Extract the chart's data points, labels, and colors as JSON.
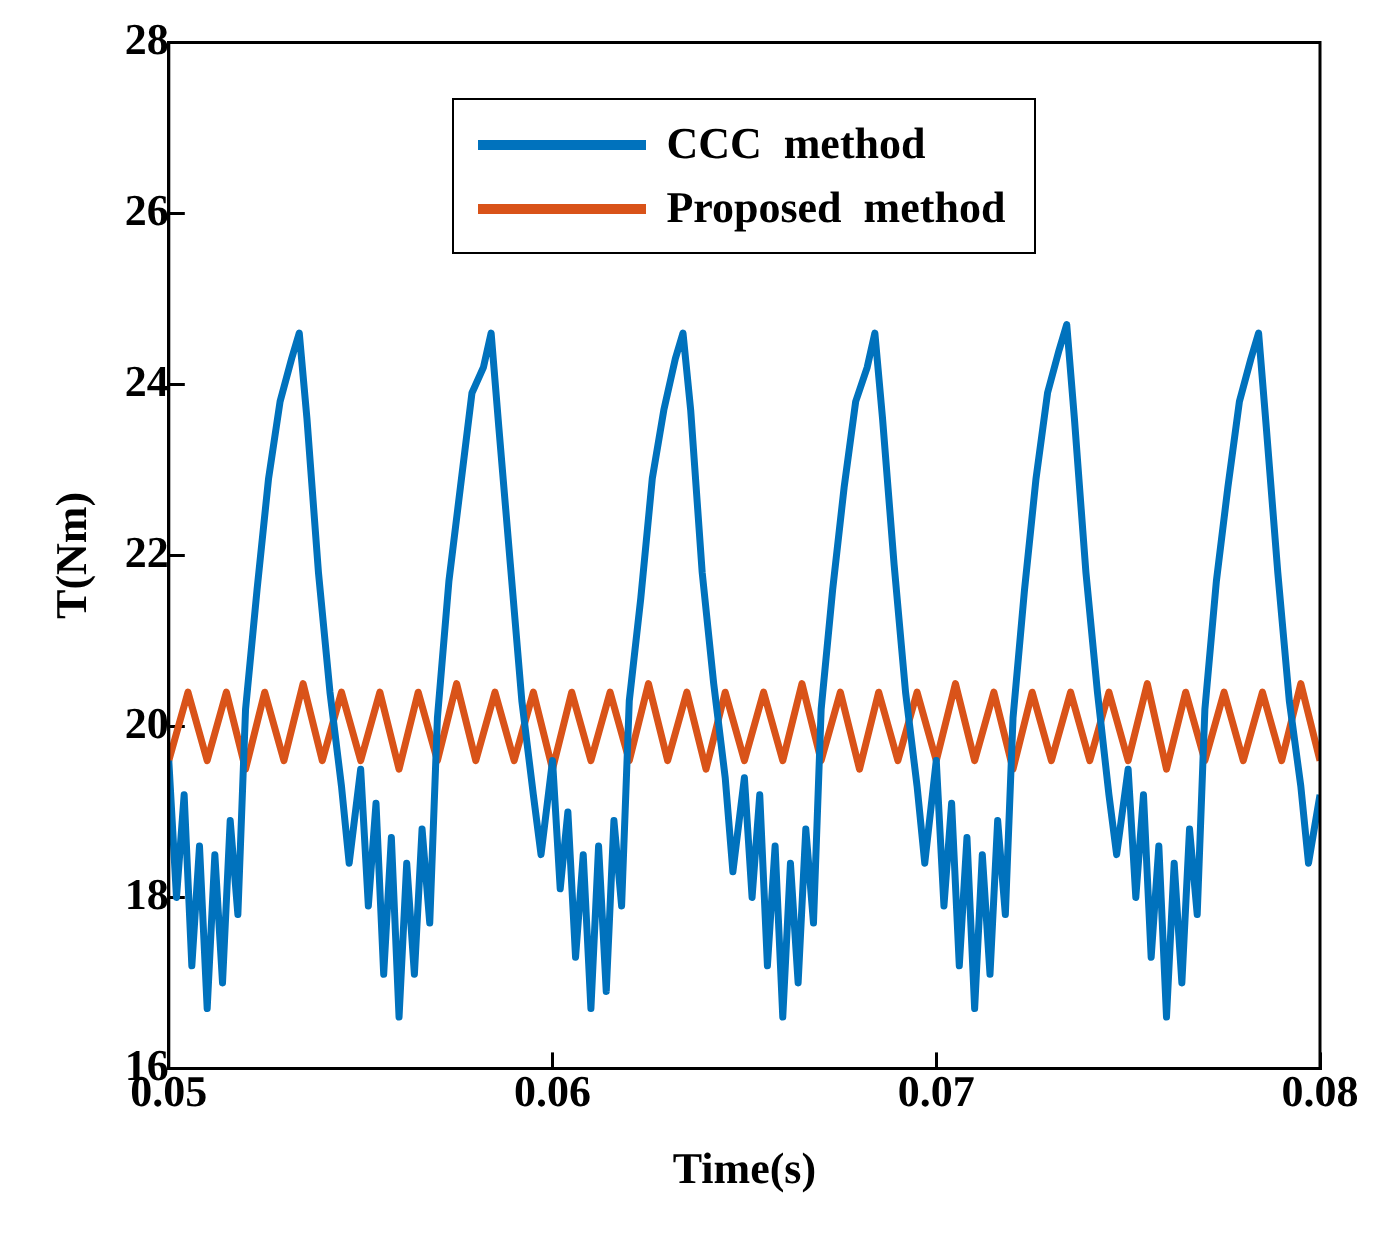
{
  "chart_data": {
    "type": "line",
    "xlabel": "Time(s)",
    "ylabel": "T(Nm)",
    "xlim": [
      0.05,
      0.08
    ],
    "xticks": [
      0.05,
      0.06,
      0.07,
      0.08
    ],
    "ylim": [
      16,
      28
    ],
    "yticks": [
      16,
      18,
      20,
      22,
      24,
      26,
      28
    ],
    "legend": "top",
    "grid": false,
    "marker": "none",
    "line_style": "solid",
    "series": [
      {
        "name": "CCC  method",
        "color": "#0072bd",
        "x": [
          0.05,
          0.0502,
          0.0504,
          0.0506,
          0.0508,
          0.051,
          0.0512,
          0.0514,
          0.0516,
          0.0518,
          0.052,
          0.0523,
          0.0526,
          0.0529,
          0.0532,
          0.0534,
          0.0536,
          0.0539,
          0.0542,
          0.0545,
          0.0547,
          0.055,
          0.0552,
          0.0554,
          0.0556,
          0.0558,
          0.056,
          0.0562,
          0.0564,
          0.0566,
          0.0568,
          0.057,
          0.0573,
          0.0576,
          0.0579,
          0.0582,
          0.0584,
          0.0586,
          0.0589,
          0.0592,
          0.0595,
          0.0597,
          0.06,
          0.0602,
          0.0604,
          0.0606,
          0.0608,
          0.061,
          0.0612,
          0.0614,
          0.0616,
          0.0618,
          0.062,
          0.0623,
          0.0626,
          0.0629,
          0.0632,
          0.0634,
          0.0636,
          0.0639,
          0.0642,
          0.0645,
          0.0647,
          0.065,
          0.0652,
          0.0654,
          0.0656,
          0.0658,
          0.066,
          0.0662,
          0.0664,
          0.0666,
          0.0668,
          0.067,
          0.0673,
          0.0676,
          0.0679,
          0.0682,
          0.0684,
          0.0686,
          0.0689,
          0.0692,
          0.0695,
          0.0697,
          0.07,
          0.0702,
          0.0704,
          0.0706,
          0.0708,
          0.071,
          0.0712,
          0.0714,
          0.0716,
          0.0718,
          0.072,
          0.0723,
          0.0726,
          0.0729,
          0.0732,
          0.0734,
          0.0736,
          0.0739,
          0.0742,
          0.0745,
          0.0747,
          0.075,
          0.0752,
          0.0754,
          0.0756,
          0.0758,
          0.076,
          0.0762,
          0.0764,
          0.0766,
          0.0768,
          0.077,
          0.0773,
          0.0776,
          0.0779,
          0.0782,
          0.0784,
          0.0786,
          0.0789,
          0.0792,
          0.0795,
          0.0797,
          0.08
        ],
        "values": [
          19.6,
          18.0,
          19.2,
          17.2,
          18.6,
          16.7,
          18.5,
          17.0,
          18.9,
          17.8,
          20.2,
          21.6,
          22.9,
          23.8,
          24.3,
          24.6,
          23.6,
          21.8,
          20.4,
          19.3,
          18.4,
          19.5,
          17.9,
          19.1,
          17.1,
          18.7,
          16.6,
          18.4,
          17.1,
          18.8,
          17.7,
          20.1,
          21.7,
          22.8,
          23.9,
          24.2,
          24.6,
          23.5,
          21.9,
          20.3,
          19.2,
          18.5,
          19.6,
          18.1,
          19.0,
          17.3,
          18.5,
          16.7,
          18.6,
          16.9,
          18.9,
          17.9,
          20.3,
          21.5,
          22.9,
          23.7,
          24.3,
          24.6,
          23.7,
          21.8,
          20.5,
          19.4,
          18.3,
          19.4,
          18.0,
          19.2,
          17.2,
          18.6,
          16.6,
          18.4,
          17.0,
          18.8,
          17.7,
          20.2,
          21.6,
          22.8,
          23.8,
          24.2,
          24.6,
          23.6,
          21.9,
          20.4,
          19.3,
          18.4,
          19.6,
          17.9,
          19.1,
          17.2,
          18.7,
          16.7,
          18.5,
          17.1,
          18.9,
          17.8,
          20.1,
          21.6,
          22.9,
          23.9,
          24.4,
          24.7,
          23.6,
          21.8,
          20.4,
          19.2,
          18.5,
          19.5,
          18.0,
          19.2,
          17.3,
          18.6,
          16.6,
          18.4,
          17.0,
          18.8,
          17.8,
          20.2,
          21.7,
          22.8,
          23.8,
          24.3,
          24.6,
          23.5,
          21.8,
          20.3,
          19.3,
          18.4,
          19.2
        ]
      },
      {
        "name": "Proposed  method",
        "color": "#d95319",
        "x": [
          0.05,
          0.0505,
          0.051,
          0.0515,
          0.052,
          0.0525,
          0.053,
          0.0535,
          0.054,
          0.0545,
          0.055,
          0.0555,
          0.056,
          0.0565,
          0.057,
          0.0575,
          0.058,
          0.0585,
          0.059,
          0.0595,
          0.06,
          0.0605,
          0.061,
          0.0615,
          0.062,
          0.0625,
          0.063,
          0.0635,
          0.064,
          0.0645,
          0.065,
          0.0655,
          0.066,
          0.0665,
          0.067,
          0.0675,
          0.068,
          0.0685,
          0.069,
          0.0695,
          0.07,
          0.0705,
          0.071,
          0.0715,
          0.072,
          0.0725,
          0.073,
          0.0735,
          0.074,
          0.0745,
          0.075,
          0.0755,
          0.076,
          0.0765,
          0.077,
          0.0775,
          0.078,
          0.0785,
          0.079,
          0.0795,
          0.08
        ],
        "values": [
          19.6,
          20.4,
          19.6,
          20.4,
          19.5,
          20.4,
          19.6,
          20.5,
          19.6,
          20.4,
          19.6,
          20.4,
          19.5,
          20.4,
          19.6,
          20.5,
          19.6,
          20.4,
          19.6,
          20.4,
          19.5,
          20.4,
          19.6,
          20.4,
          19.6,
          20.5,
          19.6,
          20.4,
          19.5,
          20.4,
          19.6,
          20.4,
          19.6,
          20.5,
          19.6,
          20.4,
          19.5,
          20.4,
          19.6,
          20.4,
          19.6,
          20.5,
          19.6,
          20.4,
          19.5,
          20.4,
          19.6,
          20.4,
          19.6,
          20.4,
          19.6,
          20.5,
          19.5,
          20.4,
          19.6,
          20.4,
          19.6,
          20.4,
          19.6,
          20.5,
          19.6
        ]
      }
    ]
  }
}
